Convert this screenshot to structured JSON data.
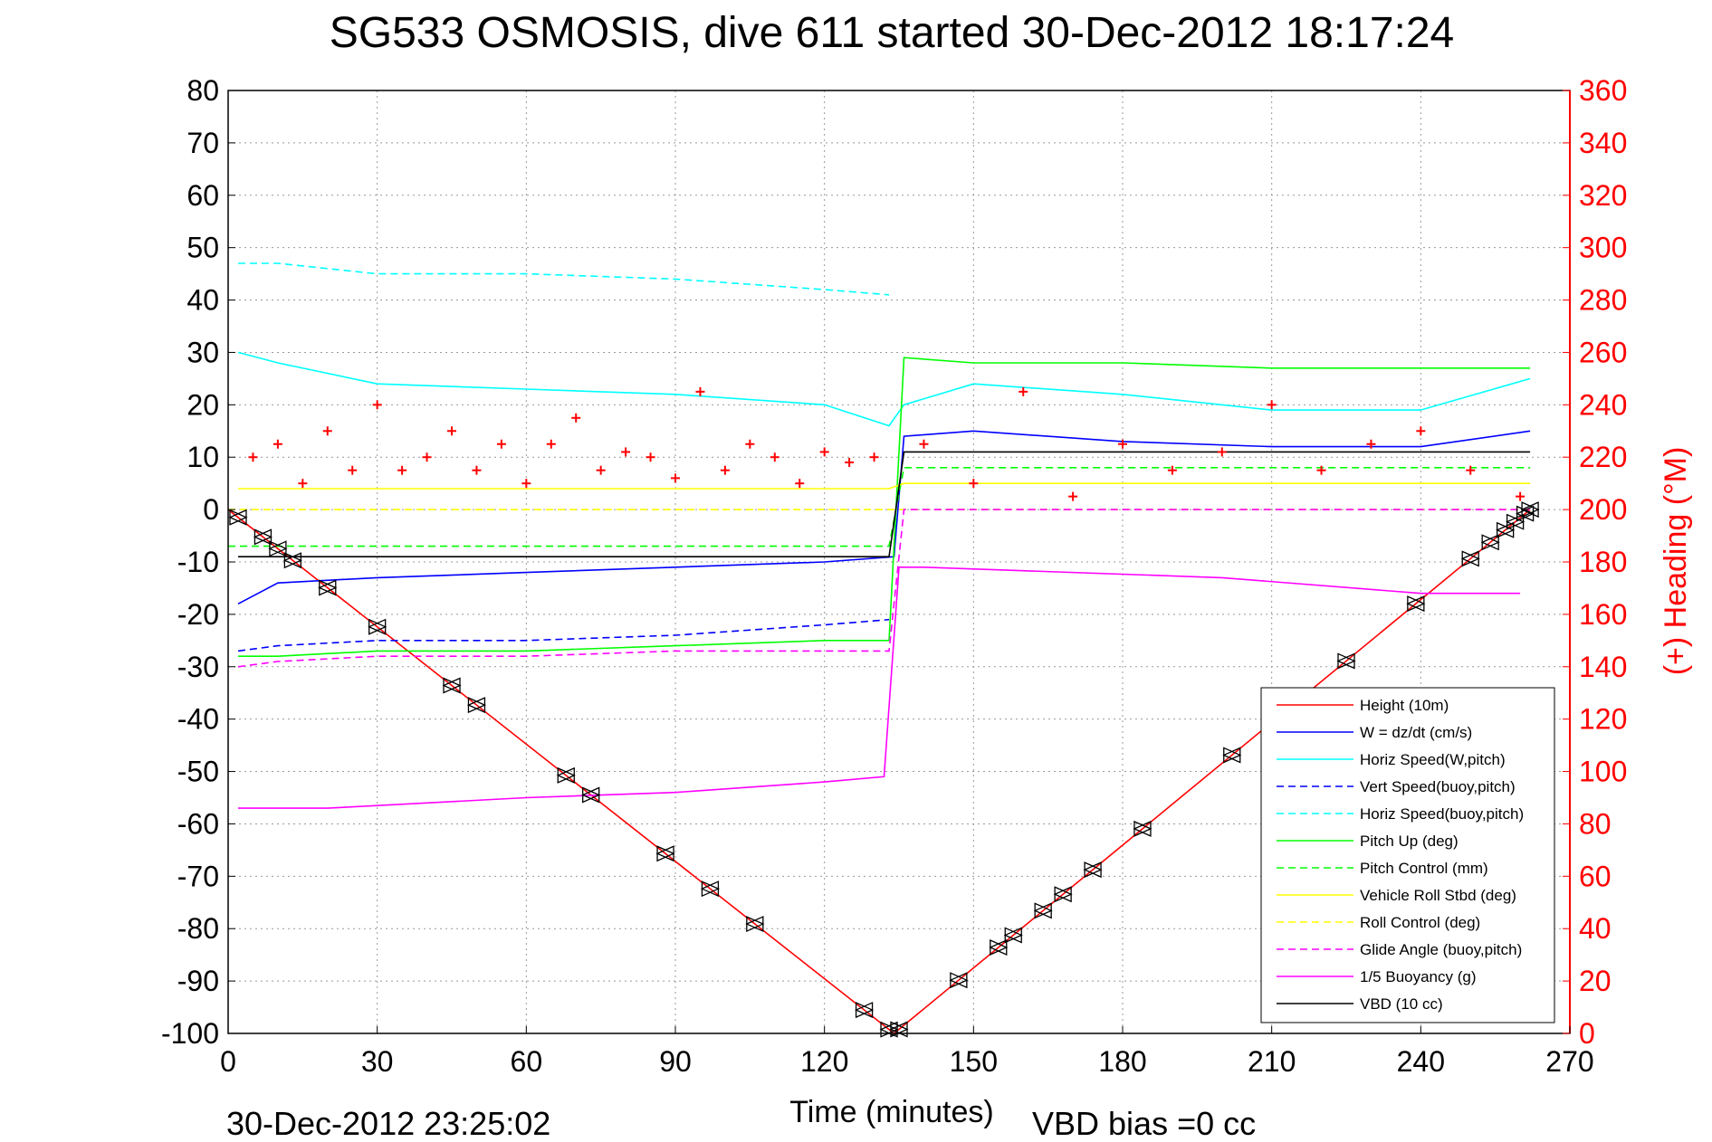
{
  "chart_data": {
    "type": "line",
    "title": "SG533 OSMOSIS, dive 611 started 30-Dec-2012 18:17:24",
    "xlabel": "Time (minutes)",
    "ylabel": "",
    "y2label": "(+) Heading (°M)",
    "xlim": [
      0,
      270
    ],
    "ylim": [
      -100,
      80
    ],
    "y2lim": [
      0,
      360
    ],
    "x_ticks": [
      "0",
      "30",
      "60",
      "90",
      "120",
      "150",
      "180",
      "210",
      "240",
      "270"
    ],
    "y_ticks": [
      "80",
      "70",
      "60",
      "50",
      "40",
      "30",
      "20",
      "10",
      "0",
      "-10",
      "-20",
      "-30",
      "-40",
      "-50",
      "-60",
      "-70",
      "-80",
      "-90",
      "-100"
    ],
    "y2_ticks": [
      "360",
      "340",
      "320",
      "300",
      "280",
      "260",
      "240",
      "220",
      "200",
      "180",
      "160",
      "140",
      "120",
      "100",
      "80",
      "60",
      "40",
      "20",
      "0"
    ],
    "grid": true,
    "legend_position": "bottom-right",
    "footer_left": "30-Dec-2012 23:25:02",
    "footer_right": "VBD bias =0 cc",
    "series": [
      {
        "name": "Height (10m)",
        "color": "#ff0000",
        "dash": "solid",
        "x": [
          0,
          134,
          262
        ],
        "y": [
          0,
          -100,
          0
        ]
      },
      {
        "name": "W = dz/dt (cm/s)",
        "color": "#0000ff",
        "dash": "solid",
        "x": [
          2,
          10,
          30,
          60,
          90,
          120,
          134,
          136,
          150,
          180,
          210,
          240,
          262
        ],
        "y": [
          -18,
          -14,
          -13,
          -12,
          -11,
          -10,
          -9,
          14,
          15,
          13,
          12,
          12,
          15
        ]
      },
      {
        "name": "Horiz Speed(W,pitch)",
        "color": "#00ffff",
        "dash": "solid",
        "x": [
          2,
          10,
          30,
          60,
          90,
          120,
          133,
          136,
          150,
          180,
          210,
          240,
          262
        ],
        "y": [
          30,
          28,
          24,
          23,
          22,
          20,
          16,
          20,
          24,
          22,
          19,
          19,
          25
        ]
      },
      {
        "name": "Vert Speed(buoy,pitch)",
        "color": "#0000ff",
        "dash": "dashed",
        "x": [
          2,
          10,
          30,
          60,
          90,
          120,
          133
        ],
        "y": [
          -27,
          -26,
          -25,
          -25,
          -24,
          -22,
          -21
        ]
      },
      {
        "name": "Horiz Speed(buoy,pitch)",
        "color": "#00ffff",
        "dash": "dashed",
        "x": [
          2,
          10,
          30,
          60,
          90,
          120,
          133
        ],
        "y": [
          47,
          47,
          45,
          45,
          44,
          42,
          41
        ]
      },
      {
        "name": "Pitch Up (deg)",
        "color": "#00ff00",
        "dash": "solid",
        "x": [
          2,
          10,
          30,
          60,
          90,
          120,
          133,
          136,
          150,
          180,
          210,
          240,
          262
        ],
        "y": [
          -28,
          -28,
          -27,
          -27,
          -26,
          -25,
          -25,
          29,
          28,
          28,
          27,
          27,
          27
        ]
      },
      {
        "name": "Pitch Control (mm)",
        "color": "#00ff00",
        "dash": "dashed",
        "x": [
          0,
          133,
          136,
          262
        ],
        "y": [
          -7,
          -7,
          8,
          8
        ]
      },
      {
        "name": "Vehicle Roll Stbd (deg)",
        "color": "#ffff00",
        "dash": "solid",
        "x": [
          2,
          30,
          60,
          90,
          120,
          133,
          136,
          180,
          210,
          240,
          262
        ],
        "y": [
          4,
          4,
          4,
          4,
          4,
          4,
          5,
          5,
          5,
          5,
          5
        ]
      },
      {
        "name": "Roll Control (deg)",
        "color": "#ffff00",
        "dash": "dashed",
        "x": [
          0,
          262
        ],
        "y": [
          0,
          0
        ]
      },
      {
        "name": "Glide Angle (buoy,pitch)",
        "color": "#ff00ff",
        "dash": "dashed",
        "x": [
          2,
          10,
          30,
          60,
          90,
          120,
          133,
          136,
          262
        ],
        "y": [
          -30,
          -29,
          -28,
          -28,
          -27,
          -27,
          -27,
          0,
          0
        ]
      },
      {
        "name": "1/5 Buoyancy (g)",
        "color": "#ff00ff",
        "dash": "solid",
        "x": [
          2,
          20,
          60,
          90,
          120,
          132,
          135,
          140,
          200,
          240,
          260
        ],
        "y": [
          -57,
          -57,
          -55,
          -54,
          -52,
          -51,
          -11,
          -11,
          -13,
          -16,
          -16
        ]
      },
      {
        "name": "VBD (10 cc)",
        "color": "#000000",
        "dash": "solid",
        "x": [
          2,
          133,
          136,
          262
        ],
        "y": [
          -9,
          -9,
          11,
          11
        ]
      },
      {
        "name": "",
        "color": "#ff0000",
        "dash": "markers",
        "axis": "right",
        "x": [
          5,
          10,
          15,
          20,
          25,
          30,
          35,
          40,
          45,
          50,
          55,
          60,
          65,
          70,
          75,
          80,
          85,
          90,
          95,
          100,
          105,
          110,
          115,
          120,
          125,
          130,
          140,
          150,
          160,
          170,
          180,
          190,
          200,
          210,
          220,
          230,
          240,
          250,
          260
        ],
        "y": [
          220,
          225,
          210,
          230,
          215,
          240,
          215,
          220,
          230,
          215,
          225,
          210,
          225,
          235,
          215,
          222,
          220,
          212,
          245,
          215,
          225,
          220,
          210,
          222,
          218,
          220,
          225,
          210,
          245,
          205,
          225,
          215,
          222,
          240,
          215,
          225,
          230,
          215,
          205
        ]
      }
    ]
  }
}
